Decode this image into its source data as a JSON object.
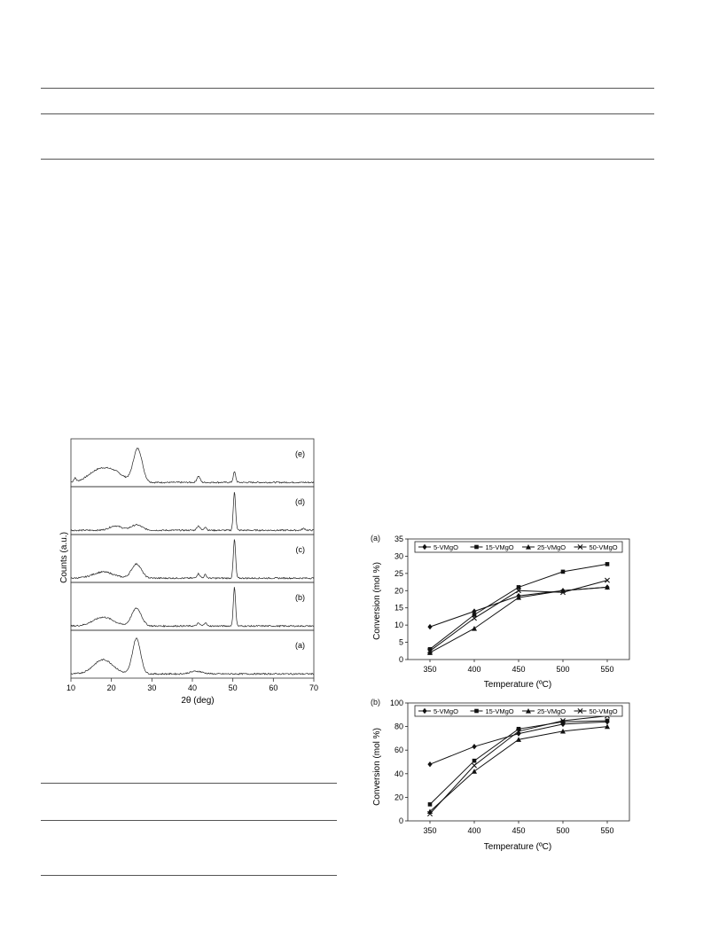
{
  "xrd_figure": {
    "ylabel": "Counts (a.u.)",
    "xlabel": "2θ (deg)",
    "x_ticks": [
      "10",
      "20",
      "30",
      "40",
      "50",
      "60",
      "70"
    ],
    "panel_labels": [
      "(e)",
      "(d)",
      "(c)",
      "(b)",
      "(a)"
    ]
  },
  "chart_data": [
    {
      "type": "line",
      "panel": "(a)",
      "xlabel": "Temperature (ºC)",
      "ylabel": "Conversion (mol %)",
      "x": [
        350,
        400,
        450,
        500,
        550
      ],
      "ylim": [
        0,
        35
      ],
      "y_ticks": [
        0,
        5,
        10,
        15,
        20,
        25,
        30,
        35
      ],
      "legend_position": "top",
      "series": [
        {
          "name": "5-VMgO",
          "marker": "diamond",
          "values": [
            9.5,
            14,
            18.5,
            20,
            21
          ]
        },
        {
          "name": "15-VMgO",
          "marker": "square",
          "values": [
            3,
            13,
            21,
            25.5,
            27.7
          ]
        },
        {
          "name": "25-VMgO",
          "marker": "triangle",
          "values": [
            2,
            9,
            18,
            20,
            21
          ]
        },
        {
          "name": "50-VMgO",
          "marker": "x",
          "values": [
            2.5,
            12,
            20,
            19.5,
            23
          ]
        }
      ]
    },
    {
      "type": "line",
      "panel": "(b)",
      "xlabel": "Temperature (ºC)",
      "ylabel": "Conversion (mol %)",
      "x": [
        350,
        400,
        450,
        500,
        550
      ],
      "ylim": [
        0,
        100
      ],
      "y_ticks": [
        0,
        20,
        40,
        60,
        80,
        100
      ],
      "legend_position": "top",
      "series": [
        {
          "name": "5-VMgO",
          "marker": "diamond",
          "values": [
            48,
            63,
            74,
            82,
            84
          ]
        },
        {
          "name": "15-VMgO",
          "marker": "square",
          "values": [
            14,
            51,
            78,
            84,
            85
          ]
        },
        {
          "name": "25-VMgO",
          "marker": "triangle",
          "values": [
            8,
            42,
            69,
            76,
            80
          ]
        },
        {
          "name": "50-VMgO",
          "marker": "x",
          "values": [
            6,
            47,
            76,
            85,
            89
          ]
        }
      ]
    }
  ]
}
